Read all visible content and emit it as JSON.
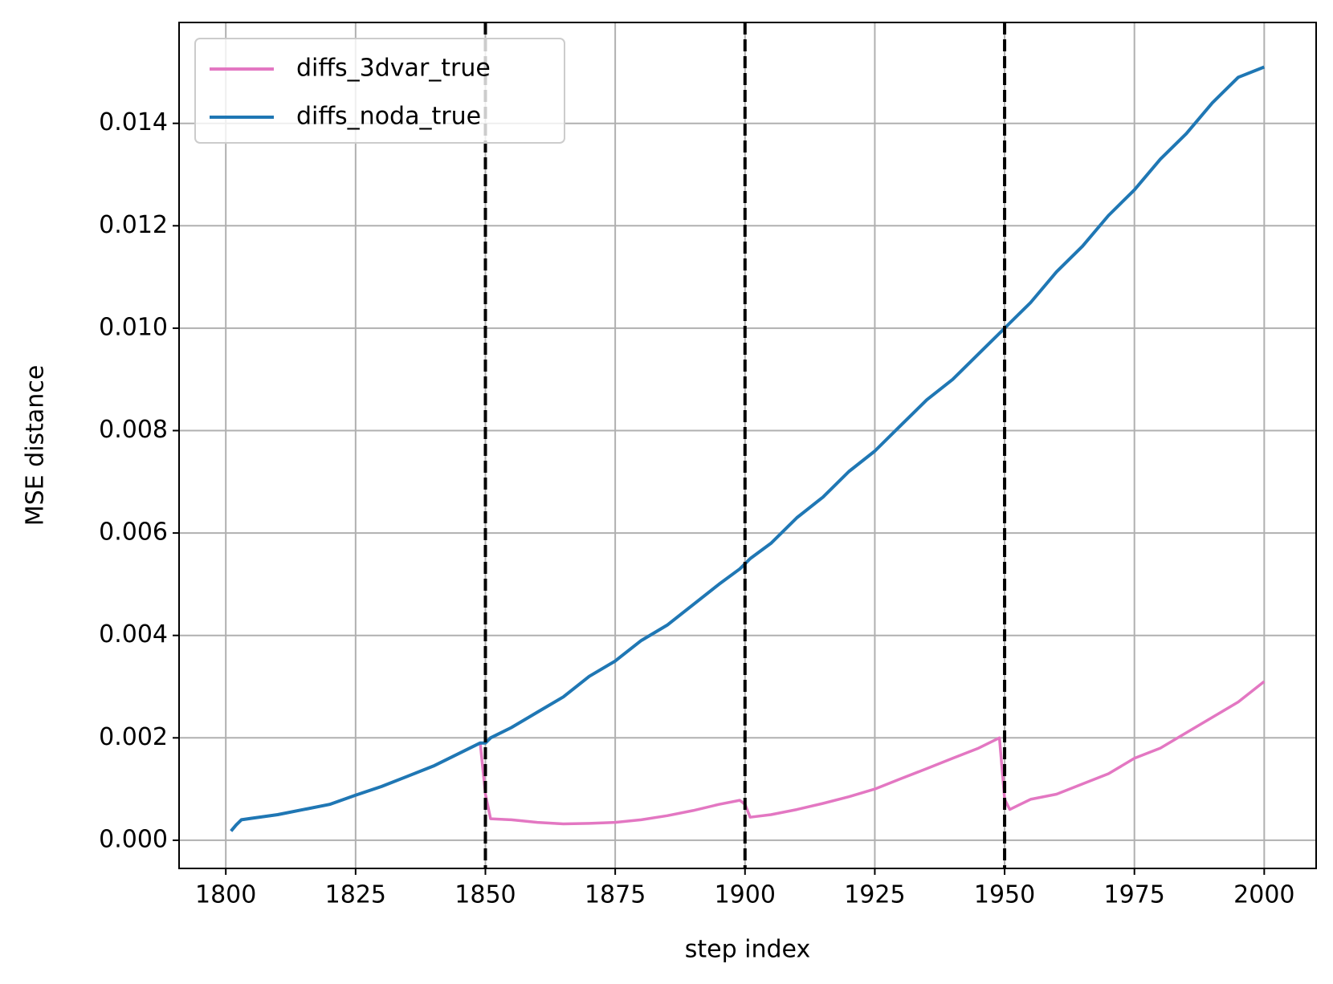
{
  "chart_data": {
    "type": "line",
    "xlabel": "step index",
    "ylabel": "MSE distance",
    "x": [
      1801,
      1802,
      1803,
      1805,
      1810,
      1815,
      1820,
      1825,
      1830,
      1835,
      1840,
      1845,
      1849,
      1850,
      1851,
      1855,
      1860,
      1865,
      1870,
      1875,
      1880,
      1885,
      1890,
      1895,
      1899,
      1900,
      1901,
      1905,
      1910,
      1915,
      1920,
      1925,
      1930,
      1935,
      1940,
      1945,
      1949,
      1950,
      1951,
      1955,
      1960,
      1965,
      1970,
      1975,
      1980,
      1985,
      1990,
      1995,
      2000
    ],
    "series": [
      {
        "name": "diffs_3dvar_true",
        "color": "#e377c2",
        "values": [
          0.00018,
          0.0003,
          0.0004,
          0.00043,
          0.0005,
          0.0006,
          0.0007,
          0.00088,
          0.00105,
          0.00125,
          0.00145,
          0.0017,
          0.0019,
          0.0009,
          0.00042,
          0.0004,
          0.00035,
          0.00032,
          0.00033,
          0.00035,
          0.0004,
          0.00048,
          0.00058,
          0.0007,
          0.00078,
          0.0007,
          0.00045,
          0.0005,
          0.0006,
          0.00072,
          0.00085,
          0.001,
          0.0012,
          0.0014,
          0.0016,
          0.0018,
          0.002,
          0.0008,
          0.0006,
          0.0008,
          0.0009,
          0.0011,
          0.0013,
          0.0016,
          0.0018,
          0.0021,
          0.0024,
          0.0027,
          0.0031
        ]
      },
      {
        "name": "diffs_noda_true",
        "color": "#1f77b4",
        "values": [
          0.00018,
          0.0003,
          0.0004,
          0.00043,
          0.0005,
          0.0006,
          0.0007,
          0.00088,
          0.00105,
          0.00125,
          0.00145,
          0.0017,
          0.0019,
          0.0019,
          0.002,
          0.0022,
          0.0025,
          0.0028,
          0.0032,
          0.0035,
          0.0039,
          0.0042,
          0.0046,
          0.005,
          0.0053,
          0.0054,
          0.0055,
          0.0058,
          0.0063,
          0.0067,
          0.0072,
          0.0076,
          0.0081,
          0.0086,
          0.009,
          0.0095,
          0.0099,
          0.01,
          0.0101,
          0.0105,
          0.0111,
          0.0116,
          0.0122,
          0.0127,
          0.0133,
          0.0138,
          0.0144,
          0.0149,
          0.0151
        ]
      }
    ],
    "vlines": [
      1850,
      1900,
      1950
    ],
    "xlim": [
      1791,
      2010
    ],
    "ylim": [
      -0.00055,
      0.01597
    ],
    "xticks": [
      1800,
      1825,
      1850,
      1875,
      1900,
      1925,
      1950,
      1975,
      2000
    ],
    "yticks": [
      {
        "value": 0,
        "label": "0.000"
      },
      0.002,
      0.004,
      0.006,
      0.008,
      {
        "value": 0.01,
        "label": "0.010"
      },
      0.012,
      0.014
    ],
    "grid": true,
    "legend": "upper left"
  }
}
